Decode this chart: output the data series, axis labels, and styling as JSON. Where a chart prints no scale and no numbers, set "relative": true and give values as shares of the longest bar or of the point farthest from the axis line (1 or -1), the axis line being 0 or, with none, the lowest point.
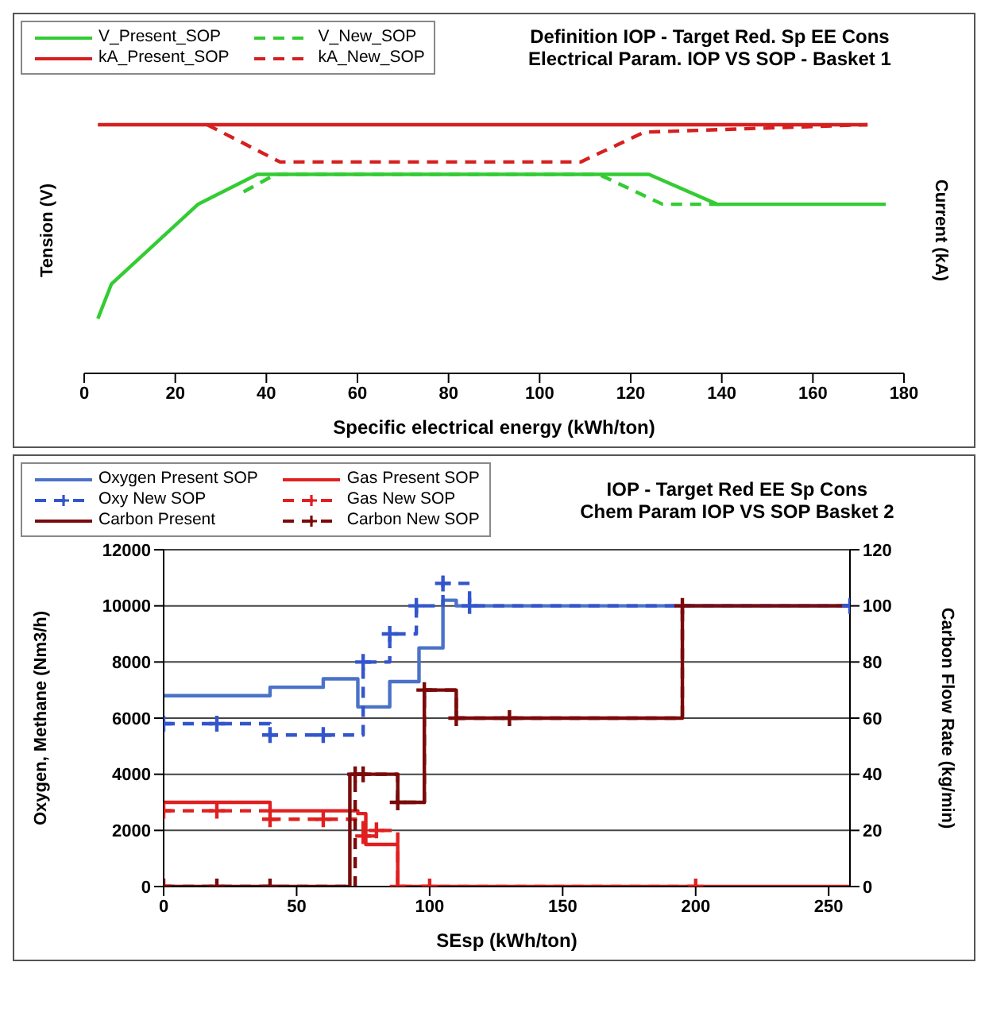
{
  "chart_data": [
    {
      "type": "line",
      "title": "Definition IOP - Target Red. Sp EE Cons",
      "subtitle": "Electrical Param. IOP VS SOP - Basket 1",
      "xlabel": "Specific electrical energy (kWh/ton)",
      "ylabel": "Tension (V)",
      "y2label": "Current (kA)",
      "relative": true,
      "xlim": [
        0,
        180
      ],
      "xticks": [
        0,
        20,
        40,
        60,
        80,
        100,
        120,
        140,
        160,
        180
      ],
      "legend": "top left",
      "series": [
        {
          "name": "V_Present_SOP",
          "color": "#33cc33",
          "x": [
            3,
            6,
            25,
            38,
            124,
            139,
            176
          ],
          "values": [
            0.22,
            0.36,
            0.68,
            0.8,
            0.8,
            0.68,
            0.68
          ]
        },
        {
          "name": "V_New_SOP",
          "color": "#33cc33",
          "line_style": "dashed",
          "x": [
            35,
            42,
            113,
            127,
            140
          ],
          "values": [
            0.73,
            0.8,
            0.8,
            0.68,
            0.68
          ]
        },
        {
          "name": "kA_Present_SOP",
          "color": "#d62020",
          "x": [
            3,
            172
          ],
          "values": [
            1,
            1
          ]
        },
        {
          "name": "kA_New_SOP",
          "color": "#d62020",
          "line_style": "dashed",
          "x": [
            27,
            43,
            109,
            123,
            172
          ],
          "values": [
            1,
            0.85,
            0.85,
            0.97,
            1
          ]
        }
      ]
    },
    {
      "type": "step",
      "title": "IOP - Target Red EE Sp Cons",
      "subtitle": "Chem Param IOP VS SOP Basket 2",
      "xlabel": "SEsp (kWh/ton)",
      "ylabel": "Oxygen, Methane (Nm3/h)",
      "y2label": "Carbon Flow Rate (kg/min)",
      "xlim": [
        0,
        258
      ],
      "xticks": [
        0,
        50,
        100,
        150,
        200,
        250
      ],
      "ylim": [
        0,
        12000
      ],
      "yticks": [
        0,
        2000,
        4000,
        6000,
        8000,
        10000,
        12000
      ],
      "y2lim": [
        0,
        120
      ],
      "y2ticks": [
        0,
        20,
        40,
        60,
        80,
        100,
        120
      ],
      "grid": "y",
      "legend": "top left",
      "series": [
        {
          "name": "Oxygen Present SOP",
          "color": "#4a72c8",
          "x": [
            0,
            40,
            60,
            73,
            85,
            96,
            105,
            110,
            258
          ],
          "values": [
            6800,
            7100,
            7400,
            6400,
            7300,
            8500,
            10200,
            10000,
            10000
          ]
        },
        {
          "name": "Gas Present SOP",
          "color": "#e02020",
          "x": [
            0,
            40,
            73,
            76,
            88,
            258
          ],
          "values": [
            3000,
            2700,
            2600,
            1500,
            0,
            0
          ]
        },
        {
          "name": "Oxy New SOP",
          "color": "#3355cc",
          "line_style": "dashed",
          "marker": "cross",
          "x": [
            0,
            20,
            40,
            60,
            75,
            85,
            95,
            105,
            115,
            258
          ],
          "values": [
            5800,
            5800,
            5400,
            5400,
            8000,
            9000,
            10000,
            10800,
            10000,
            10000
          ]
        },
        {
          "name": "Gas New SOP",
          "color": "#e02020",
          "line_style": "dashed",
          "marker": "cross",
          "x": [
            0,
            20,
            40,
            60,
            75,
            80,
            88,
            100,
            200
          ],
          "values": [
            2700,
            2700,
            2400,
            2400,
            1800,
            2000,
            0,
            0,
            0
          ]
        },
        {
          "name": "Carbon Present",
          "color": "#7a0a0a",
          "axis": "y2",
          "x": [
            0,
            70,
            88,
            98,
            110,
            195,
            258
          ],
          "values": [
            0,
            40,
            30,
            70,
            60,
            100,
            100
          ]
        },
        {
          "name": "Carbon New SOP",
          "color": "#7a0a0a",
          "axis": "y2",
          "line_style": "dashed",
          "marker": "cross",
          "x": [
            0,
            20,
            40,
            72,
            75,
            88,
            98,
            110,
            130,
            195
          ],
          "values": [
            0,
            0,
            0,
            40,
            40,
            30,
            70,
            60,
            60,
            100
          ]
        }
      ]
    }
  ]
}
